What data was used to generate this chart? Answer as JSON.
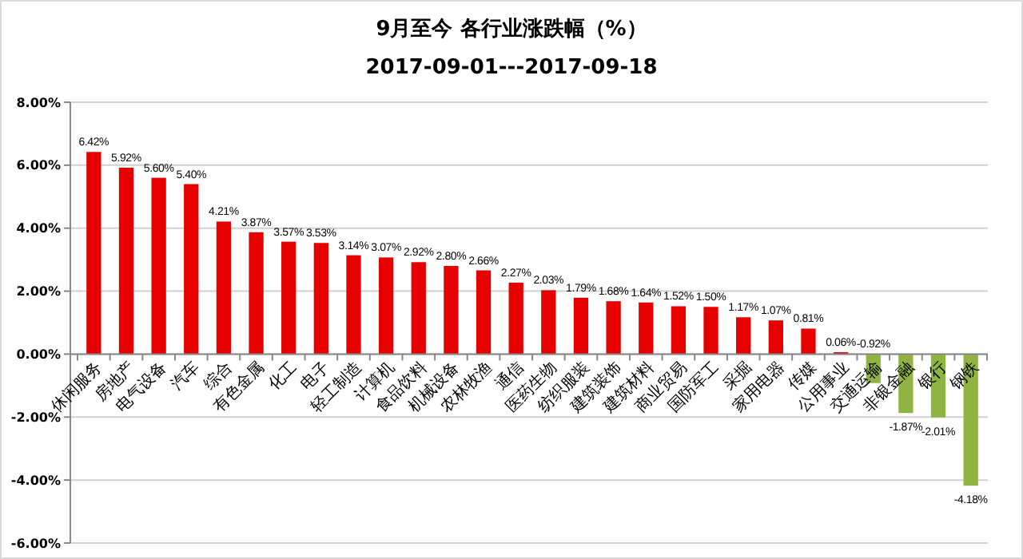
{
  "chart_data": {
    "type": "bar",
    "title": "9月至今 各行业涨跌幅（%）",
    "subtitle": "2017-09-01---2017-09-18",
    "categories": [
      "休闲服务",
      "房地产",
      "电气设备",
      "汽车",
      "综合",
      "有色金属",
      "化工",
      "电子",
      "轻工制造",
      "计算机",
      "食品饮料",
      "机械设备",
      "农林牧渔",
      "通信",
      "医药生物",
      "纺织服装",
      "建筑装饰",
      "建筑材料",
      "商业贸易",
      "国防军工",
      "采掘",
      "家用电器",
      "传媒",
      "公用事业",
      "交通运输",
      "非银金融",
      "银行",
      "钢铁"
    ],
    "values": [
      6.42,
      5.92,
      5.6,
      5.4,
      4.21,
      3.87,
      3.57,
      3.53,
      3.14,
      3.07,
      2.92,
      2.8,
      2.66,
      2.27,
      2.03,
      1.79,
      1.68,
      1.64,
      1.52,
      1.5,
      1.17,
      1.07,
      0.81,
      0.06,
      -0.92,
      -1.87,
      -2.01,
      -4.18
    ],
    "value_labels": [
      "6.42%",
      "5.92%",
      "5.60%",
      "5.40%",
      "4.21%",
      "3.87%",
      "3.57%",
      "3.53%",
      "3.14%",
      "3.07%",
      "2.92%",
      "2.80%",
      "2.66%",
      "2.27%",
      "2.03%",
      "1.79%",
      "1.68%",
      "1.64%",
      "1.52%",
      "1.50%",
      "1.17%",
      "1.07%",
      "0.81%",
      "0.06%",
      "-0.92%",
      "-1.87%",
      "-2.01%",
      "-4.18%"
    ],
    "colors": [
      "#e60000",
      "#e60000",
      "#e60000",
      "#e60000",
      "#e60000",
      "#e60000",
      "#e60000",
      "#e60000",
      "#e60000",
      "#e60000",
      "#e60000",
      "#e60000",
      "#e60000",
      "#e60000",
      "#e60000",
      "#e60000",
      "#e60000",
      "#e60000",
      "#e60000",
      "#e60000",
      "#e60000",
      "#e60000",
      "#e60000",
      "#e60000",
      "#8fb442",
      "#8fb442",
      "#8fb442",
      "#8fb442"
    ],
    "ylim": [
      -6,
      8
    ],
    "yticks": [
      {
        "value": -6,
        "label": "-6.00%"
      },
      {
        "value": -4,
        "label": "-4.00%"
      },
      {
        "value": -2,
        "label": "-2.00%"
      },
      {
        "value": 0,
        "label": "0.00%"
      },
      {
        "value": 2,
        "label": "2.00%"
      },
      {
        "value": 4,
        "label": "4.00%"
      },
      {
        "value": 6,
        "label": "6.00%"
      },
      {
        "value": 8,
        "label": "8.00%"
      }
    ],
    "grid": "y"
  }
}
